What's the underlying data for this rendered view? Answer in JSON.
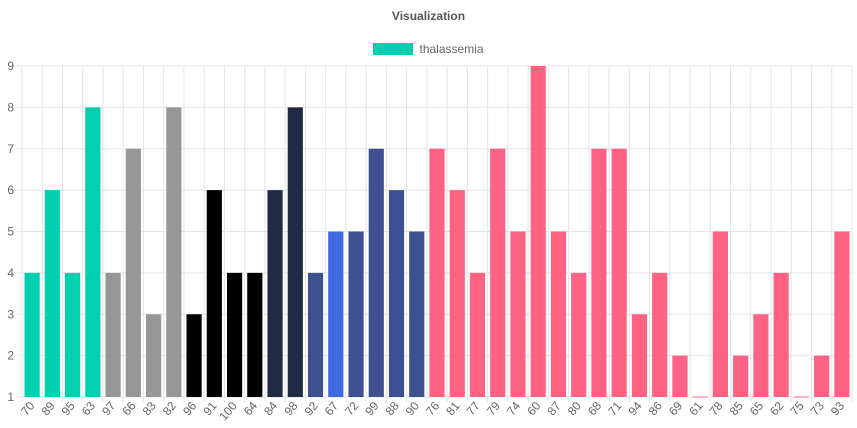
{
  "chart_data": {
    "type": "bar",
    "title": "Visualization",
    "xlabel": "",
    "ylabel": "",
    "ylim": [
      1,
      9
    ],
    "yticks": [
      1,
      2,
      3,
      4,
      5,
      6,
      7,
      8,
      9
    ],
    "grid": true,
    "legend_position": "top",
    "series": [
      {
        "name": "thalassemia",
        "legend_color": "#00d0b0",
        "categories": [
          "70",
          "89",
          "95",
          "63",
          "97",
          "66",
          "83",
          "82",
          "96",
          "91",
          "100",
          "64",
          "84",
          "98",
          "92",
          "67",
          "72",
          "99",
          "88",
          "90",
          "76",
          "81",
          "77",
          "79",
          "74",
          "60",
          "87",
          "80",
          "68",
          "71",
          "94",
          "86",
          "69",
          "61",
          "78",
          "85",
          "65",
          "62",
          "75",
          "73",
          "93"
        ],
        "values": [
          4,
          6,
          4,
          8,
          4,
          7,
          3,
          8,
          3,
          6,
          4,
          4,
          6,
          8,
          4,
          5,
          5,
          7,
          6,
          5,
          7,
          6,
          4,
          7,
          5,
          9,
          5,
          4,
          7,
          7,
          3,
          4,
          2,
          1,
          5,
          2,
          3,
          4,
          1,
          2,
          5
        ],
        "colors": [
          "#00d0b0",
          "#00d0b0",
          "#00d0b0",
          "#00d0b0",
          "#969696",
          "#969696",
          "#969696",
          "#969696",
          "#000000",
          "#000000",
          "#000000",
          "#000000",
          "#1f2a44",
          "#1f2a44",
          "#3d5191",
          "#4169e1",
          "#3d5191",
          "#3d5191",
          "#3d5191",
          "#3d5191",
          "#ff6384",
          "#ff6384",
          "#ff6384",
          "#ff6384",
          "#ff6384",
          "#ff6384",
          "#ff6384",
          "#ff6384",
          "#ff6384",
          "#ff6384",
          "#ff6384",
          "#ff6384",
          "#ff6384",
          "#ff6384",
          "#ff6384",
          "#ff6384",
          "#ff6384",
          "#ff6384",
          "#ff6384",
          "#ff6384",
          "#ff6384"
        ]
      }
    ]
  }
}
